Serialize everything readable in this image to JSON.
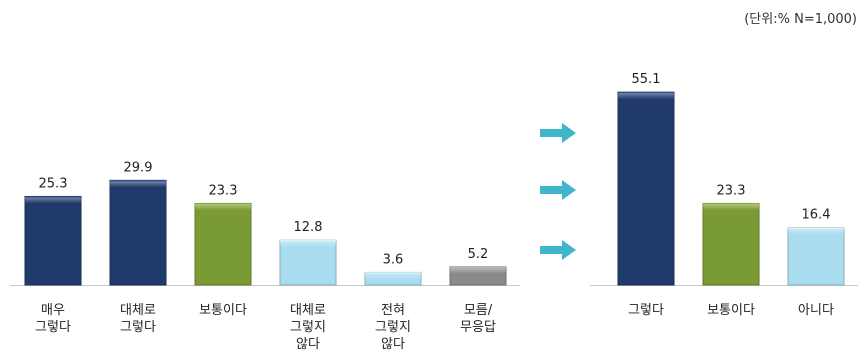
{
  "unit_note": "(단위:% N=1,000)",
  "chart_data": [
    {
      "type": "bar",
      "categories": [
        [
          "매우",
          "그렇다"
        ],
        [
          "대체로",
          "그렇다"
        ],
        [
          "보통이다"
        ],
        [
          "대체로",
          "그렇지",
          "않다"
        ],
        [
          "전혀",
          "그렇지",
          "않다"
        ],
        [
          "모름/",
          "무응답"
        ]
      ],
      "values": [
        25.3,
        29.9,
        23.3,
        12.8,
        3.6,
        5.2
      ],
      "colors": [
        "#1f3a6b",
        "#1f3a6b",
        "#7a9a34",
        "#a9dcef",
        "#a9dcef",
        "#8a8a8a"
      ],
      "value_labels": [
        "25.3",
        "29.9",
        "23.3",
        "12.8",
        "3.6",
        "5.2"
      ],
      "ylim": [
        0,
        60
      ]
    },
    {
      "type": "bar",
      "categories": [
        [
          "그렇다"
        ],
        [
          "보통이다"
        ],
        [
          "아니다"
        ]
      ],
      "values": [
        55.1,
        23.3,
        16.4
      ],
      "colors": [
        "#1f3a6b",
        "#7a9a34",
        "#a9dcef"
      ],
      "value_labels": [
        "55.1",
        "23.3",
        "16.4"
      ],
      "ylim": [
        0,
        60
      ]
    }
  ],
  "arrows": {
    "count": 3,
    "color": "#3fb6c9",
    "icon": "right-arrow"
  }
}
